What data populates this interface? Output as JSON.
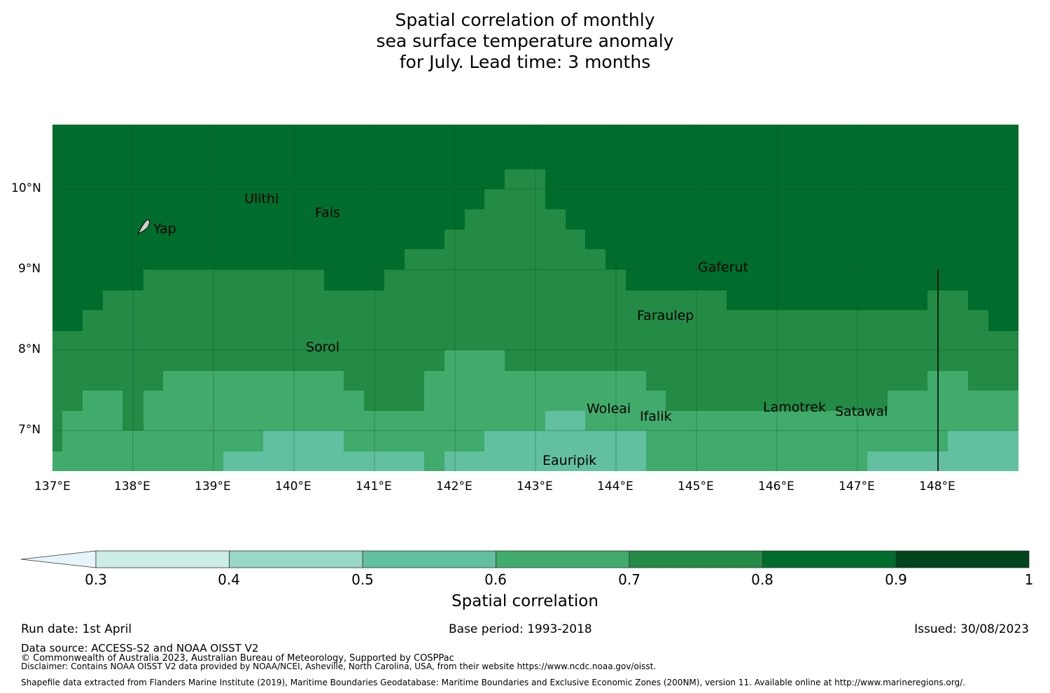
{
  "title": {
    "line1": "Spatial correlation of monthly",
    "line2": "sea surface temperature anomaly",
    "line3": "for July. Lead time: 3 months"
  },
  "map": {
    "lon_range": [
      137,
      149
    ],
    "lat_range": [
      6.5,
      10.8
    ],
    "lon_ticks": [
      "137°E",
      "138°E",
      "139°E",
      "140°E",
      "141°E",
      "142°E",
      "143°E",
      "144°E",
      "145°E",
      "146°E",
      "147°E",
      "148°E"
    ],
    "lat_ticks": [
      "10°N",
      "9°N",
      "8°N",
      "7°N"
    ],
    "levels": {
      "0.6-0.7": "#41ab6c",
      "0.7-0.8": "#238b45",
      "0.8-0.9": "#006d2c",
      "0.5-0.6": "#62bfa0"
    },
    "places": [
      "Ulithi",
      "Fais",
      "Yap",
      "Gaferut",
      "Faraulep",
      "Sorol",
      "Woleai",
      "Ifalik",
      "Lamotrek",
      "Satawal",
      "Eauripik"
    ]
  },
  "colorbar": {
    "ticks": [
      "0.3",
      "0.4",
      "0.5",
      "0.6",
      "0.7",
      "0.8",
      "0.9",
      "1"
    ],
    "colors": [
      "#e5f5f9",
      "#ccece6",
      "#99d8c9",
      "#62bfa0",
      "#41ab6c",
      "#238b45",
      "#006d2c",
      "#00441b"
    ],
    "label": "Spatial correlation"
  },
  "footer": {
    "run_date": "Run date: 1st April",
    "base_period": "Base period: 1993-2018",
    "issued": "Issued: 30/08/2023",
    "data_source": "Data source: ACCESS-S2 and NOAA OISST V2",
    "copyright": "© Commonwealth of Australia 2023, Australian Bureau of Meteorology, Supported by COSPPac",
    "disclaimer": "Disclaimer: Contains NOAA OISST V2 data provided by NOAA/NCEI, Asheville, North Carolina, USA, from their website https://www.ncdc.noaa.gov/oisst.",
    "shapefile": "Shapefile data extracted from Flanders Marine Institute (2019), Maritime Boundaries Geodatabase: Maritime Boundaries and Exclusive Economic Zones (200NM), version 11. Available online at http://www.marineregions.org/."
  }
}
